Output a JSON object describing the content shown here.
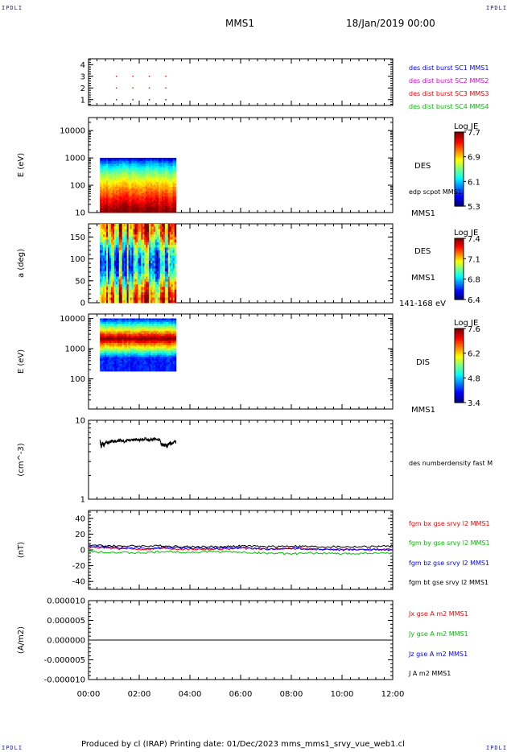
{
  "header": {
    "title": "MMS1",
    "date": "18/Jan/2019 00:00",
    "corner_left": "IPDLI",
    "corner_right": "IPDLI"
  },
  "footer": {
    "text": "Produced by cl (IRAP)   Printing date: 01/Dec/2023   mms_mms1_srvy_vue_web1.cl",
    "corner_left": "IPDLI",
    "corner_right": "IPDLI"
  },
  "colors": {
    "red": "#ff0000",
    "green": "#00c000",
    "blue": "#0000ff",
    "magenta": "#e000e0",
    "black": "#000000"
  },
  "chart_data": [
    {
      "type": "scatter",
      "panel": "burst",
      "y_ticks": [
        "1",
        "2",
        "3",
        "4"
      ],
      "ylim": [
        0.5,
        4.5
      ],
      "legend": [
        {
          "label": "des dist burst SC1 MMS1",
          "color": "#0000ff"
        },
        {
          "label": "des dist burst SC2 MMS2",
          "color": "#e000e0"
        },
        {
          "label": "des dist burst SC3 MMS3",
          "color": "#ff0000"
        },
        {
          "label": "des dist burst SC4 MMS4",
          "color": "#00c000"
        }
      ],
      "points": [
        {
          "x": 1.1,
          "y": 1
        },
        {
          "x": 1.75,
          "y": 1
        },
        {
          "x": 2.4,
          "y": 1
        },
        {
          "x": 3.05,
          "y": 1
        },
        {
          "x": 1.1,
          "y": 2
        },
        {
          "x": 1.75,
          "y": 2
        },
        {
          "x": 2.4,
          "y": 2
        },
        {
          "x": 3.05,
          "y": 2
        },
        {
          "x": 1.1,
          "y": 3
        },
        {
          "x": 1.75,
          "y": 3
        },
        {
          "x": 2.4,
          "y": 3
        },
        {
          "x": 3.05,
          "y": 3
        }
      ]
    },
    {
      "type": "heatmap",
      "panel": "des-energy",
      "ylabel": "E (eV)",
      "y_ticks": [
        "10",
        "100",
        "1000",
        "10000"
      ],
      "log": true,
      "ylim": [
        10,
        30000
      ],
      "x_range": [
        0.45,
        3.45
      ],
      "y_range": [
        10,
        1000
      ],
      "colorbar": {
        "title": "Log JE",
        "labels": [
          "7.7",
          "6.9",
          "6.1",
          "5.3"
        ]
      },
      "labels": [
        "DES",
        "edp scpot MMS1",
        "MMS1"
      ]
    },
    {
      "type": "heatmap",
      "panel": "des-pitch",
      "ylabel": "a (deg)",
      "y_ticks": [
        "0",
        "50",
        "100",
        "150"
      ],
      "ylim": [
        0,
        180
      ],
      "x_range": [
        0.45,
        3.45
      ],
      "colorbar": {
        "title": "Log JE",
        "labels": [
          "7.4",
          "7.1",
          "6.8",
          "6.4"
        ]
      },
      "labels": [
        "DES",
        "MMS1",
        "141-168 eV"
      ]
    },
    {
      "type": "heatmap",
      "panel": "dis-energy",
      "ylabel": "E (eV)",
      "y_ticks": [
        "100",
        "1000",
        "10000"
      ],
      "log": true,
      "ylim": [
        10,
        14000
      ],
      "x_range": [
        0.45,
        3.45
      ],
      "y_range": [
        180,
        10000
      ],
      "colorbar": {
        "title": "Log JE",
        "labels": [
          "7.6",
          "6.2",
          "4.8",
          "3.4"
        ]
      },
      "labels": [
        "DIS",
        "MMS1"
      ]
    },
    {
      "type": "line",
      "panel": "density",
      "ylabel": "(cm^-3)",
      "y_ticks": [
        "1",
        "10"
      ],
      "log": true,
      "ylim": [
        1,
        10
      ],
      "series": [
        {
          "name": "des numberdensity fast M",
          "color": "#000000",
          "x": [
            0.45,
            0.5,
            0.55,
            0.6,
            0.7,
            0.8,
            0.9,
            1.0,
            1.2,
            1.4,
            1.6,
            1.8,
            2.0,
            2.2,
            2.4,
            2.6,
            2.8,
            2.9,
            3.0,
            3.1,
            3.2,
            3.3,
            3.4,
            3.45
          ],
          "y": [
            5.5,
            4.6,
            5.2,
            4.8,
            5.3,
            5.2,
            5.5,
            5.3,
            5.6,
            5.4,
            5.6,
            5.7,
            5.6,
            5.8,
            5.7,
            5.8,
            5.7,
            4.8,
            4.9,
            4.7,
            5.2,
            5.0,
            5.4,
            5.3
          ]
        }
      ]
    },
    {
      "type": "line",
      "panel": "magnetic-field",
      "ylabel": "(nT)",
      "y_ticks": [
        "-40",
        "-20",
        "0",
        "20",
        "40"
      ],
      "ylim": [
        -50,
        50
      ],
      "series": [
        {
          "name": "fgm bx gse srvy l2 MMS1",
          "color": "#ff0000",
          "x": [
            0,
            1,
            2,
            3,
            4,
            5,
            6,
            7,
            8,
            9,
            10,
            11,
            12
          ],
          "y": [
            3,
            2,
            1,
            2,
            1,
            1,
            2,
            1,
            2,
            1,
            1,
            0,
            1
          ]
        },
        {
          "name": "fgm by gse srvy l2 MMS1",
          "color": "#00c000",
          "x": [
            0,
            1,
            2,
            3,
            4,
            5,
            6,
            7,
            8,
            9,
            10,
            11,
            12
          ],
          "y": [
            -2,
            -3,
            -4,
            -2,
            -3,
            -2,
            -3,
            -4,
            -5,
            -4,
            -5,
            -4,
            -4
          ]
        },
        {
          "name": "fgm bz gse srvy l2 MMS1",
          "color": "#0000ff",
          "x": [
            0,
            1,
            2,
            3,
            4,
            5,
            6,
            7,
            8,
            9,
            10,
            11,
            12
          ],
          "y": [
            4,
            3,
            2,
            3,
            2,
            2,
            3,
            1,
            2,
            1,
            0,
            1,
            0
          ]
        },
        {
          "name": "fgm bt gse srvy l2 MMS1",
          "color": "#000000",
          "x": [
            0,
            1,
            2,
            3,
            4,
            5,
            6,
            7,
            8,
            9,
            10,
            11,
            12
          ],
          "y": [
            6,
            5,
            5,
            5,
            4,
            4,
            5,
            4,
            5,
            4,
            4,
            4,
            5
          ]
        }
      ]
    },
    {
      "type": "line",
      "panel": "current",
      "ylabel": "(A/m2)",
      "y_ticks": [
        "-0.000010",
        "-0.000005",
        "0.000000",
        "0.000005",
        "0.000010"
      ],
      "ylim": [
        -1e-05,
        1e-05
      ],
      "series": [
        {
          "name": "Jx gse A m2 MMS1",
          "color": "#ff0000",
          "x": [
            0,
            12
          ],
          "y": [
            0,
            0
          ]
        },
        {
          "name": "Jy gse A m2 MMS1",
          "color": "#00c000",
          "x": [
            0,
            12
          ],
          "y": [
            0,
            0
          ]
        },
        {
          "name": "Jz gse A m2 MMS1",
          "color": "#0000ff",
          "x": [
            0,
            12
          ],
          "y": [
            0,
            0
          ]
        },
        {
          "name": "J A m2 MMS1",
          "color": "#000000",
          "x": [
            0,
            12
          ],
          "y": [
            0,
            0
          ]
        }
      ]
    }
  ],
  "x_axis": {
    "ticks": [
      "00:00",
      "02:00",
      "04:00",
      "06:00",
      "08:00",
      "10:00",
      "12:00"
    ],
    "xlim": [
      0,
      12
    ]
  }
}
